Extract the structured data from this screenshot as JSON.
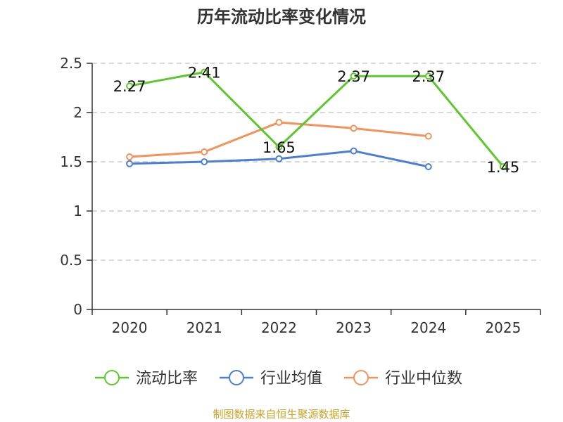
{
  "title": "历年流动比率变化情况",
  "source": "制图数据来自恒生聚源数据库",
  "chart_data": {
    "type": "line",
    "title": "历年流动比率变化情况",
    "categories": [
      "2020",
      "2021",
      "2022",
      "2023",
      "2024",
      "2025"
    ],
    "ylim": [
      0,
      2.5
    ],
    "yticks": [
      0,
      0.5,
      1,
      1.5,
      2,
      2.5
    ],
    "ytick_labels": [
      "0",
      "0.5",
      "1",
      "1.5",
      "2",
      "2.5"
    ],
    "grid": true,
    "legend_position": "bottom",
    "series": [
      {
        "name": "流动比率",
        "color": "#5cc82b",
        "values": [
          2.27,
          2.41,
          1.65,
          2.37,
          2.37,
          1.45
        ],
        "labels": [
          "2.27",
          "2.41",
          "1.65",
          "2.37",
          "2.37",
          "1.45"
        ]
      },
      {
        "name": "行业均值",
        "color": "#4b7fd6",
        "values": [
          1.48,
          1.5,
          1.53,
          1.61,
          1.45,
          null
        ]
      },
      {
        "name": "行业中位数",
        "color": "#f5925a",
        "values": [
          1.55,
          1.6,
          1.9,
          1.84,
          1.76,
          null
        ]
      }
    ]
  }
}
